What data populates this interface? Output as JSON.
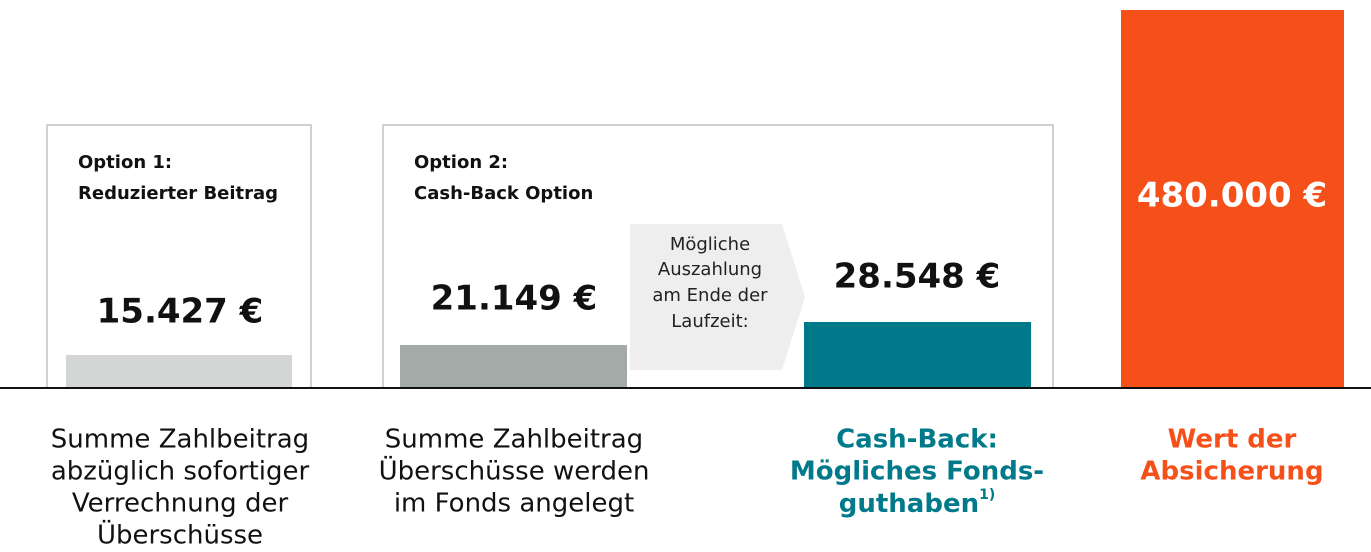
{
  "options": [
    {
      "heading": [
        "Option 1:",
        "Reduzierter Beitrag"
      ],
      "amount": "15.427 €",
      "caption": [
        "Summe Zahlbeitrag",
        "abzüglich sofortiger",
        "Verrechnung der",
        "Überschüsse"
      ]
    },
    {
      "heading": [
        "Option 2:",
        "Cash-Back Option"
      ],
      "amount": "21.149 €",
      "caption": [
        "Summe Zahlbeitrag",
        "Überschüsse werden",
        "im Fonds angelegt"
      ]
    }
  ],
  "payout_note": [
    "Mögliche",
    "Auszahlung",
    "am Ende der",
    "Laufzeit:"
  ],
  "fund": {
    "amount": "28.548 €",
    "caption": [
      "Cash-Back:",
      "Mögliches Fonds-",
      "guthaben"
    ],
    "footnote": "1)"
  },
  "insurance": {
    "amount": "480.000 €",
    "caption": [
      "Wert der",
      "Absicherung"
    ]
  }
}
